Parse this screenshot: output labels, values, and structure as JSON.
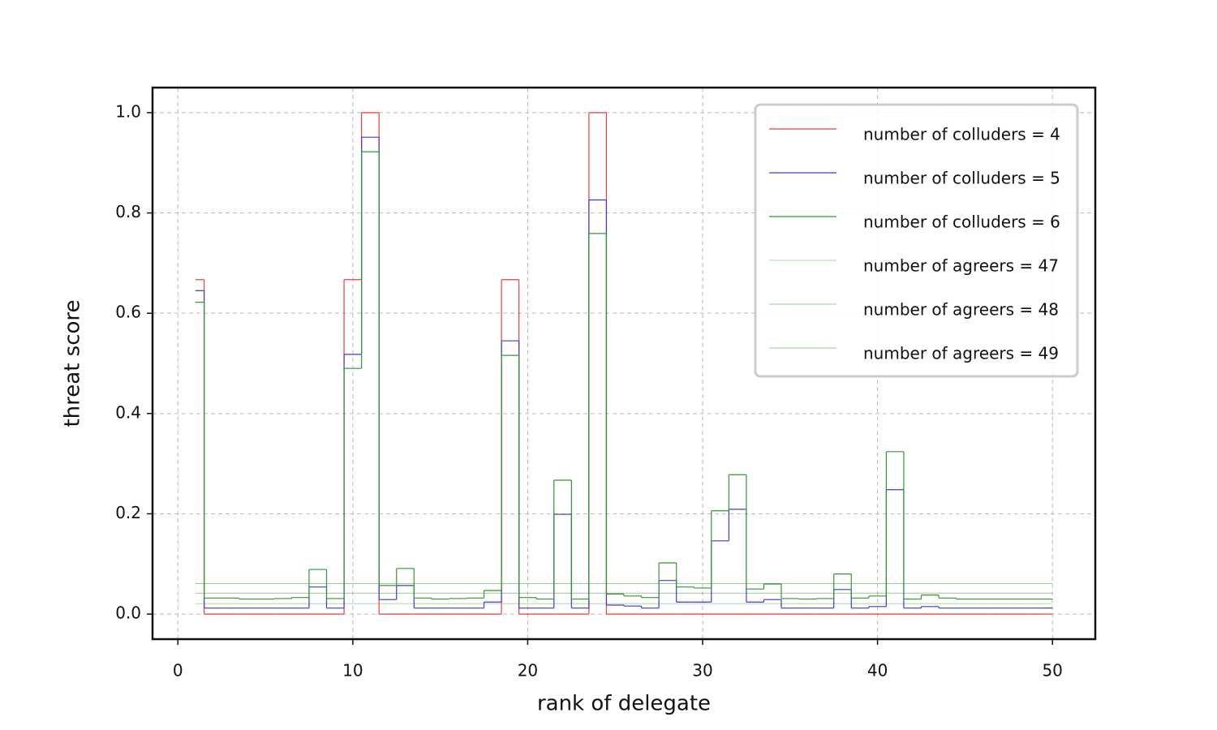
{
  "chart_data": {
    "type": "step",
    "xlabel": "rank of delegate",
    "ylabel": "threat score",
    "x": [
      1,
      2,
      3,
      4,
      5,
      6,
      7,
      8,
      9,
      10,
      11,
      12,
      13,
      14,
      15,
      16,
      17,
      18,
      19,
      20,
      21,
      22,
      23,
      24,
      25,
      26,
      27,
      28,
      29,
      30,
      31,
      32,
      33,
      34,
      35,
      36,
      37,
      38,
      39,
      40,
      41,
      42,
      43,
      44,
      45,
      46,
      47,
      48,
      49,
      50
    ],
    "series": [
      {
        "name": "number of colluders = 4",
        "color": "#e8413c",
        "width": 1.2,
        "values": [
          0.667,
          0,
          0,
          0,
          0,
          0,
          0,
          0,
          0,
          0.667,
          1.0,
          0,
          0,
          0,
          0,
          0,
          0,
          0,
          0.667,
          0,
          0,
          0,
          0,
          1.0,
          0,
          0,
          0,
          0,
          0,
          0,
          0,
          0,
          0,
          0,
          0,
          0,
          0,
          0,
          0,
          0,
          0,
          0,
          0,
          0,
          0,
          0,
          0,
          0,
          0,
          0
        ]
      },
      {
        "name": "number of colluders = 5",
        "color": "#3b3bd0",
        "width": 1.2,
        "values": [
          0.645,
          0.012,
          0.012,
          0.012,
          0.012,
          0.012,
          0.012,
          0.054,
          0.012,
          0.518,
          0.951,
          0.029,
          0.057,
          0.012,
          0.012,
          0.012,
          0.012,
          0.024,
          0.545,
          0.012,
          0.012,
          0.199,
          0.012,
          0.826,
          0.018,
          0.016,
          0.012,
          0.067,
          0.024,
          0.024,
          0.146,
          0.209,
          0.024,
          0.029,
          0.012,
          0.012,
          0.012,
          0.049,
          0.012,
          0.015,
          0.248,
          0.012,
          0.015,
          0.012,
          0.012,
          0.012,
          0.012,
          0.012,
          0.012,
          0.012
        ]
      },
      {
        "name": "number of colluders = 6",
        "color": "#2e9a2e",
        "width": 1.2,
        "values": [
          0.622,
          0.032,
          0.032,
          0.03,
          0.03,
          0.031,
          0.033,
          0.089,
          0.031,
          0.49,
          0.922,
          0.057,
          0.091,
          0.032,
          0.03,
          0.031,
          0.032,
          0.047,
          0.516,
          0.033,
          0.03,
          0.267,
          0.03,
          0.759,
          0.04,
          0.036,
          0.033,
          0.102,
          0.054,
          0.052,
          0.206,
          0.278,
          0.05,
          0.06,
          0.031,
          0.03,
          0.031,
          0.08,
          0.032,
          0.036,
          0.324,
          0.03,
          0.038,
          0.032,
          0.03,
          0.03,
          0.03,
          0.03,
          0.03,
          0.03
        ]
      }
    ],
    "agreers": [
      {
        "name": "number of agreers = 47",
        "color": "#2e9a2e",
        "width": 0.4,
        "value": 0.021
      },
      {
        "name": "number of agreers = 48",
        "color": "#2e9a2e",
        "width": 0.5,
        "value": 0.042
      },
      {
        "name": "number of agreers = 49",
        "color": "#2e9a2e",
        "width": 0.6,
        "value": 0.061
      }
    ],
    "xlim": [
      -1.45,
      52.45
    ],
    "ylim": [
      -0.05,
      1.05
    ],
    "xticks": [
      0,
      10,
      20,
      30,
      40,
      50
    ],
    "yticks": [
      {
        "value": 0,
        "label": "0.0"
      },
      {
        "value": 0.2,
        "label": "0.2"
      },
      {
        "value": 0.4,
        "label": "0.4"
      },
      {
        "value": 0.6,
        "label": "0.6"
      },
      {
        "value": 0.8,
        "label": "0.8"
      },
      {
        "value": 1.0,
        "label": "1.0"
      }
    ],
    "grid": true,
    "legend": "upper right"
  }
}
